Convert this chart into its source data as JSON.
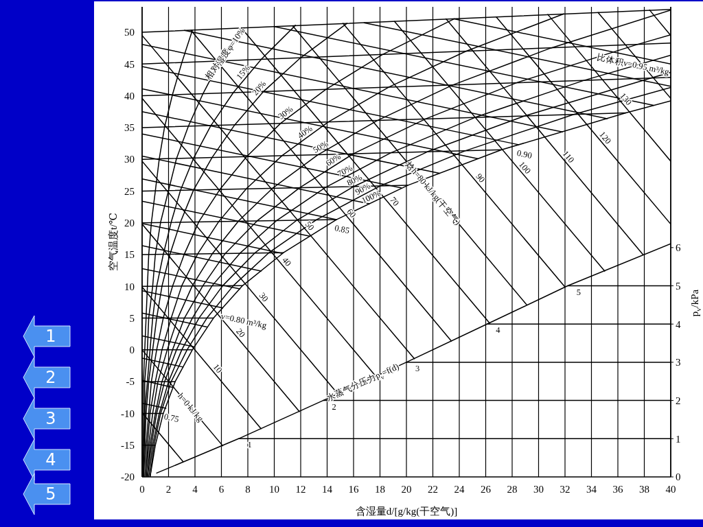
{
  "chart_data": {
    "type": "line",
    "xlabel": "含湿量d/[g/kg(干空气)]",
    "ylabel": "空气温度t/℃",
    "y2label": "p$_{v}$/kPa",
    "xlim": [
      0,
      40
    ],
    "xticks": [
      0,
      2,
      4,
      6,
      8,
      10,
      12,
      14,
      16,
      18,
      20,
      22,
      24,
      26,
      28,
      30,
      32,
      34,
      36,
      38,
      40
    ],
    "ylim": [
      -20,
      54
    ],
    "yticks": [
      -20,
      -15,
      -10,
      -5,
      0,
      5,
      10,
      15,
      20,
      25,
      30,
      35,
      40,
      45,
      50
    ],
    "y2lim": [
      0,
      12.3
    ],
    "y2ticks": [
      0,
      1,
      2,
      3,
      4,
      5,
      6
    ],
    "grid": "x",
    "annotations": [
      "1",
      "2",
      "3",
      "4",
      "5"
    ],
    "series": [
      {
        "color": "#000000",
        "x": [
          0,
          1.0
        ],
        "values": [
          -15,
          -15
        ]
      },
      {
        "color": "#000000",
        "x": [
          0,
          1.6
        ],
        "values": [
          -10,
          -10
        ]
      },
      {
        "color": "#000000",
        "x": [
          0,
          2.5
        ],
        "values": [
          -5,
          -5
        ]
      },
      {
        "color": "#000000",
        "x": [
          0,
          3.8
        ],
        "values": [
          0,
          0
        ]
      },
      {
        "color": "#000000",
        "x": [
          0,
          5.4
        ],
        "values": [
          5,
          5
        ]
      },
      {
        "color": "#000000",
        "x": [
          0,
          7.6
        ],
        "values": [
          10,
          10.1
        ]
      },
      {
        "color": "#000000",
        "x": [
          0,
          10.7
        ],
        "values": [
          15,
          15.3
        ]
      },
      {
        "color": "#000000",
        "x": [
          0,
          14.7
        ],
        "values": [
          20,
          20.5
        ]
      },
      {
        "color": "#000000",
        "x": [
          0,
          20.1
        ],
        "values": [
          25,
          25.9
        ]
      },
      {
        "color": "#000000",
        "x": [
          0,
          27.2
        ],
        "values": [
          30,
          31.5
        ]
      },
      {
        "color": "#000000",
        "x": [
          0,
          36.6
        ],
        "values": [
          35,
          37.3
        ]
      },
      {
        "color": "#000000",
        "x": [
          0,
          40
        ],
        "values": [
          40,
          42.9
        ]
      },
      {
        "color": "#000000",
        "x": [
          0,
          40
        ],
        "values": [
          45,
          48.3
        ]
      },
      {
        "color": "#000000",
        "x": [
          0,
          40
        ],
        "values": [
          50,
          53.6
        ]
      },
      {
        "color": "#000000",
        "x": [
          0.0,
          0.1,
          0.1,
          0.1,
          0.2,
          0.3,
          0.4,
          0.5,
          0.7,
          1.0,
          1.3,
          1.7,
          2.3,
          3.0,
          3.8
        ],
        "values": [
          -20,
          -15,
          -10,
          -5,
          0,
          5,
          10,
          15,
          20,
          25,
          30.1,
          35.1,
          40.2,
          45.2,
          50.3
        ]
      },
      {
        "name": "相对湿度φ=10%",
        "color": "#000000",
        "x": [
          0.1,
          0.1,
          0.2,
          0.2,
          0.4,
          0.5,
          0.8,
          1.0,
          1.4,
          2.0,
          2.6,
          3.5,
          4.6,
          5.9,
          7.7
        ],
        "values": [
          -20,
          -15,
          -10,
          -5,
          0,
          5,
          10,
          15,
          20.1,
          25.1,
          30.1,
          35.2,
          40.3,
          45.5,
          50.7
        ]
      },
      {
        "name": "15%",
        "color": "#000000",
        "x": [
          0.1,
          0.2,
          0.2,
          0.4,
          0.6,
          0.8,
          1.1,
          1.6,
          2.2,
          2.9,
          3.9,
          5.2,
          6.9,
          9.0,
          11.6
        ],
        "values": [
          -20,
          -15,
          -10,
          -5,
          0,
          5,
          10,
          15,
          20.1,
          25.1,
          30.2,
          35.3,
          40.5,
          45.7,
          51.1
        ]
      },
      {
        "name": "20%",
        "color": "#000000",
        "x": [
          0.1,
          0.2,
          0.3,
          0.5,
          0.8,
          1.1,
          1.5,
          2.1,
          2.9,
          3.9,
          5.3,
          7.0,
          9.2,
          12.0,
          15.5
        ],
        "values": [
          -20,
          -15,
          -10,
          -5,
          0,
          5,
          10,
          15,
          20.1,
          25.2,
          30.3,
          35.4,
          40.7,
          46.0,
          51.4
        ]
      },
      {
        "name": "30%",
        "color": "#000000",
        "x": [
          0.2,
          0.3,
          0.5,
          0.7,
          1.1,
          1.6,
          2.3,
          3.2,
          4.3,
          5.9,
          7.9,
          10.5,
          13.9,
          18.2,
          23.6
        ],
        "values": [
          -20,
          -15,
          -10,
          -5,
          0,
          5,
          10,
          15.1,
          20.2,
          25.3,
          30.4,
          35.7,
          41.0,
          46.5,
          52.1
        ]
      },
      {
        "name": "40%",
        "color": "#000000",
        "x": [
          0.3,
          0.4,
          0.6,
          1.0,
          1.5,
          2.2,
          3.0,
          4.2,
          5.8,
          7.9,
          10.6,
          14.1,
          18.7,
          24.5,
          31.9
        ],
        "values": [
          -20,
          -15,
          -10,
          -5,
          0,
          5,
          10.1,
          15.1,
          20.2,
          25.4,
          30.6,
          35.9,
          41.4,
          47.0,
          52.9
        ]
      },
      {
        "name": "50%",
        "color": "#000000",
        "x": [
          0.3,
          0.5,
          0.8,
          1.2,
          1.9,
          2.7,
          3.8,
          5.3,
          7.3,
          9.9,
          13.3,
          17.8,
          23.5,
          30.9,
          40
        ],
        "values": [
          -20,
          -15,
          -10,
          -5,
          0,
          5,
          10.1,
          15.1,
          20.3,
          25.5,
          30.7,
          36.1,
          41.7,
          47.5,
          53.5
        ]
      },
      {
        "name": "60%",
        "color": "#000000",
        "x": [
          0.4,
          0.6,
          1.0,
          1.5,
          2.3,
          3.2,
          4.6,
          6.3,
          8.7,
          11.9,
          16.0,
          21.5,
          28.4,
          37.5,
          40
        ],
        "values": [
          -20,
          -15,
          -10,
          -5,
          0,
          5,
          10.1,
          15.2,
          20.3,
          25.5,
          30.9,
          36.4,
          42.1,
          48.1,
          49.6
        ]
      },
      {
        "name": "70%",
        "color": "#000000",
        "x": [
          0.4,
          0.7,
          1.1,
          1.7,
          2.6,
          3.8,
          5.3,
          7.4,
          10.2,
          13.9,
          18.8,
          25.2,
          33.4,
          40
        ],
        "values": [
          -20,
          -15,
          -10,
          -5,
          0,
          5,
          10.1,
          15.2,
          20.4,
          25.6,
          31.0,
          36.6,
          42.4,
          46.4
        ]
      },
      {
        "name": "80%",
        "color": "#000000",
        "x": [
          0.5,
          0.8,
          1.3,
          2.0,
          3.0,
          4.3,
          6.1,
          8.5,
          11.7,
          16.0,
          21.6,
          28.9,
          38.5,
          40
        ],
        "values": [
          -20,
          -15,
          -10,
          -5,
          0,
          5,
          10.1,
          15.2,
          20.4,
          25.7,
          31.2,
          36.8,
          42.8,
          43.7
        ]
      },
      {
        "name": "90%",
        "color": "#000000",
        "x": [
          0.6,
          0.9,
          1.4,
          2.2,
          3.4,
          4.9,
          6.9,
          9.6,
          13.2,
          18.0,
          24.4,
          32.7,
          40
        ],
        "values": [
          -20,
          -15,
          -10,
          -5,
          0,
          5,
          10.1,
          15.3,
          20.5,
          25.8,
          31.3,
          37.1,
          41.3
        ]
      },
      {
        "name": "100%",
        "color": "#000000",
        "x": [
          0.6,
          1.0,
          1.6,
          2.5,
          3.8,
          5.4,
          7.6,
          10.7,
          14.7,
          20.1,
          27.2,
          36.6,
          40
        ],
        "values": [
          -20,
          -15,
          -10,
          -5,
          0,
          5,
          10.1,
          15.3,
          20.5,
          25.9,
          31.5,
          37.3,
          39.2
        ]
      },
      {
        "color": "#000000",
        "x": [
          0,
          3.1
        ],
        "values": [
          -9.9,
          -17.6
        ]
      },
      {
        "name": "h=0 kJ/kg",
        "color": "#000000",
        "x": [
          0,
          6.1
        ],
        "values": [
          0,
          -15.1
        ]
      },
      {
        "name": "10",
        "color": "#000000",
        "x": [
          0,
          9.0
        ],
        "values": [
          9.9,
          -12.4
        ]
      },
      {
        "name": "20",
        "color": "#000000",
        "x": [
          0,
          11.9
        ],
        "values": [
          19.8,
          -9.7
        ]
      },
      {
        "name": "30",
        "color": "#000000",
        "x": [
          0,
          14.8
        ],
        "values": [
          29.7,
          -6.9
        ]
      },
      {
        "name": "40",
        "color": "#000000",
        "x": [
          0,
          17.7
        ],
        "values": [
          39.6,
          -4.2
        ]
      },
      {
        "name": "50",
        "color": "#000000",
        "x": [
          0,
          20.6
        ],
        "values": [
          49.5,
          -1.4
        ]
      },
      {
        "name": "60",
        "color": "#000000",
        "x": [
          3.7,
          23.4
        ],
        "values": [
          50.3,
          1.4
        ]
      },
      {
        "name": "70",
        "color": "#000000",
        "x": [
          7.5,
          26.3
        ],
        "values": [
          50.7,
          4.2
        ]
      },
      {
        "name": "焓h=80 kJ/kg(干空气)",
        "color": "#000000",
        "x": [
          11.4,
          29.1
        ],
        "values": [
          51.0,
          7.1
        ]
      },
      {
        "name": "90",
        "color": "#000000",
        "x": [
          15.2,
          32.0
        ],
        "values": [
          51.4,
          9.9
        ]
      },
      {
        "name": "100",
        "color": "#000000",
        "x": [
          19.1,
          35.0
        ],
        "values": [
          51.7,
          12.4
        ]
      },
      {
        "name": "110",
        "color": "#000000",
        "x": [
          23.0,
          37.9
        ],
        "values": [
          52.1,
          15.0
        ]
      },
      {
        "name": "120",
        "color": "#000000",
        "x": [
          26.8,
          40
        ],
        "values": [
          52.4,
          19.8
        ]
      },
      {
        "name": "130",
        "color": "#000000",
        "x": [
          30.7,
          40
        ],
        "values": [
          52.8,
          29.7
        ]
      },
      {
        "color": "#000000",
        "x": [
          34.5,
          40
        ],
        "values": [
          53.1,
          39.6
        ]
      },
      {
        "color": "#000000",
        "x": [
          38.4,
          40
        ],
        "values": [
          53.5,
          49.5
        ]
      },
      {
        "name": "0.75",
        "color": "#000000",
        "x": [
          0,
          1.8
        ],
        "values": [
          -8.4,
          -9.2
        ]
      },
      {
        "color": "#000000",
        "x": [
          0,
          2.3
        ],
        "values": [
          -4.8,
          -5.9
        ]
      },
      {
        "color": "#000000",
        "x": [
          0,
          3.1
        ],
        "values": [
          -1.3,
          -2.7
        ]
      },
      {
        "color": "#000000",
        "x": [
          0,
          3.9
        ],
        "values": [
          2.2,
          0.5
        ]
      },
      {
        "color": "#000000",
        "x": [
          0,
          4.9
        ],
        "values": [
          5.8,
          3.6
        ]
      },
      {
        "name": "v=0.80 m³/kg",
        "color": "#000000",
        "x": [
          0,
          6.1
        ],
        "values": [
          9.3,
          6.6
        ]
      },
      {
        "color": "#000000",
        "x": [
          0,
          7.4
        ],
        "values": [
          12.8,
          9.6
        ]
      },
      {
        "color": "#000000",
        "x": [
          0,
          9.0
        ],
        "values": [
          16.4,
          12.4
        ]
      },
      {
        "color": "#000000",
        "x": [
          0,
          10.6
        ],
        "values": [
          19.9,
          15.2
        ]
      },
      {
        "color": "#000000",
        "x": [
          0,
          12.7
        ],
        "values": [
          23.4,
          17.9
        ]
      },
      {
        "name": "0.85",
        "color": "#000000",
        "x": [
          0,
          14.7
        ],
        "values": [
          26.9,
          20.5
        ]
      },
      {
        "color": "#000000",
        "x": [
          0,
          17.2
        ],
        "values": [
          30.5,
          23.0
        ]
      },
      {
        "color": "#000000",
        "x": [
          0,
          19.6
        ],
        "values": [
          34.0,
          25.5
        ]
      },
      {
        "color": "#000000",
        "x": [
          0,
          22.5
        ],
        "values": [
          37.5,
          27.8
        ]
      },
      {
        "color": "#000000",
        "x": [
          0,
          25.4
        ],
        "values": [
          41.1,
          30.1
        ]
      },
      {
        "name": "0.90",
        "color": "#000000",
        "x": [
          0,
          28.5
        ],
        "values": [
          44.6,
          32.3
        ]
      },
      {
        "color": "#000000",
        "x": [
          0,
          31.8
        ],
        "values": [
          48.1,
          34.3
        ]
      },
      {
        "color": "#000000",
        "x": [
          3.2,
          35.2
        ],
        "values": [
          50.3,
          36.4
        ]
      },
      {
        "color": "#000000",
        "x": [
          10.0,
          38.7
        ],
        "values": [
          50.9,
          38.5
        ]
      },
      {
        "color": "#000000",
        "x": [
          16.8,
          40
        ],
        "values": [
          51.5,
          41.5
        ]
      },
      {
        "name": "比体积v=0.95 m³/kg",
        "color": "#000000",
        "x": [
          23.6,
          40
        ],
        "values": [
          52.1,
          45.0
        ]
      },
      {
        "name": "水蒸气分压力p$_{v}$=f(d)",
        "color": "#000000",
        "axis": "y2",
        "x": [
          1.1,
          7.3,
          13.7,
          20.0,
          26.1,
          32.2,
          40
        ],
        "values": [
          0.1,
          1.0,
          2.0,
          3.0,
          4.0,
          5.0,
          6.1
        ]
      },
      {
        "name": "1",
        "color": "#000000",
        "axis": "y2",
        "x": [
          7.3,
          40
        ],
        "values": [
          1,
          1
        ]
      },
      {
        "name": "2",
        "color": "#000000",
        "axis": "y2",
        "x": [
          13.7,
          40
        ],
        "values": [
          2,
          2
        ]
      },
      {
        "name": "3",
        "color": "#000000",
        "axis": "y2",
        "x": [
          20.0,
          40
        ],
        "values": [
          3,
          3
        ]
      },
      {
        "name": "4",
        "color": "#000000",
        "axis": "y2",
        "x": [
          26.1,
          40
        ],
        "values": [
          4,
          4
        ]
      },
      {
        "name": "5",
        "color": "#000000",
        "axis": "y2",
        "x": [
          32.2,
          40
        ],
        "values": [
          5,
          5
        ]
      }
    ]
  }
}
